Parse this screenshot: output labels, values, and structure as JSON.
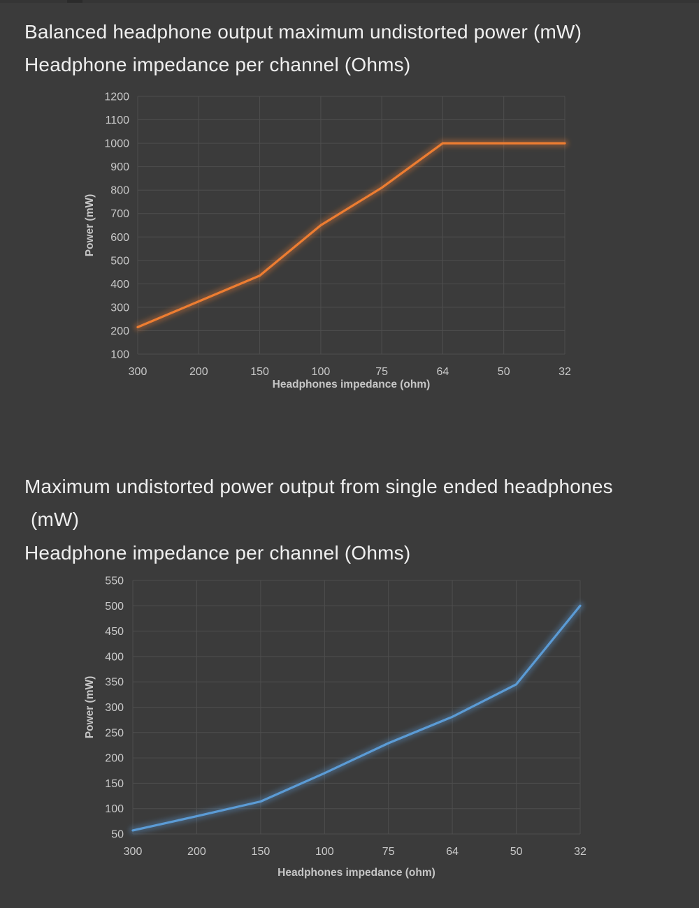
{
  "titles": {
    "chart1_line1": "Balanced headphone output maximum undistorted power (mW)",
    "chart1_line2": "Headphone impedance per channel (Ohms)",
    "chart2_line1": "Maximum undistorted power output from single ended headphones",
    "chart2_line2": "(mW)",
    "chart2_line3": "Headphone impedance per channel (Ohms)"
  },
  "colors": {
    "background": "#3b3b3b",
    "grid": "#4e4e4e",
    "tick_text": "#c9c9c9",
    "axis_title_text": "#c6c6c6",
    "page_title_text": "#efefef",
    "balanced_line": "#ed7d31",
    "single_ended_line": "#5b9bd5"
  },
  "chart_data": [
    {
      "type": "line",
      "title": "Balanced headphone output maximum undistorted power (mW) / Headphone impedance per channel (Ohms)",
      "xlabel": "Headphones impedance (ohm)",
      "ylabel": "Power (mW)",
      "categories": [
        "300",
        "200",
        "150",
        "100",
        "75",
        "64",
        "50",
        "32"
      ],
      "series": [
        {
          "name": "Balanced headphone output power",
          "color": "#ed7d31",
          "values": [
            215,
            325,
            435,
            650,
            810,
            1000,
            1000,
            1000
          ]
        }
      ],
      "ylim": [
        100,
        1200
      ],
      "ystep": 100,
      "grid": true,
      "legend": "none"
    },
    {
      "type": "line",
      "title": "Maximum undistorted power output from single ended headphones (mW) / Headphone impedance per channel (Ohms)",
      "xlabel": "Headphones impedance (ohm)",
      "ylabel": "Power (mW)",
      "categories": [
        "300",
        "200",
        "150",
        "100",
        "75",
        "64",
        "50",
        "32"
      ],
      "series": [
        {
          "name": "Single ended headphone output power",
          "color": "#5b9bd5",
          "values": [
            57,
            85,
            114,
            170,
            229,
            281,
            345,
            500
          ]
        }
      ],
      "ylim": [
        50,
        550
      ],
      "ystep": 50,
      "grid": true,
      "legend": "none"
    }
  ]
}
